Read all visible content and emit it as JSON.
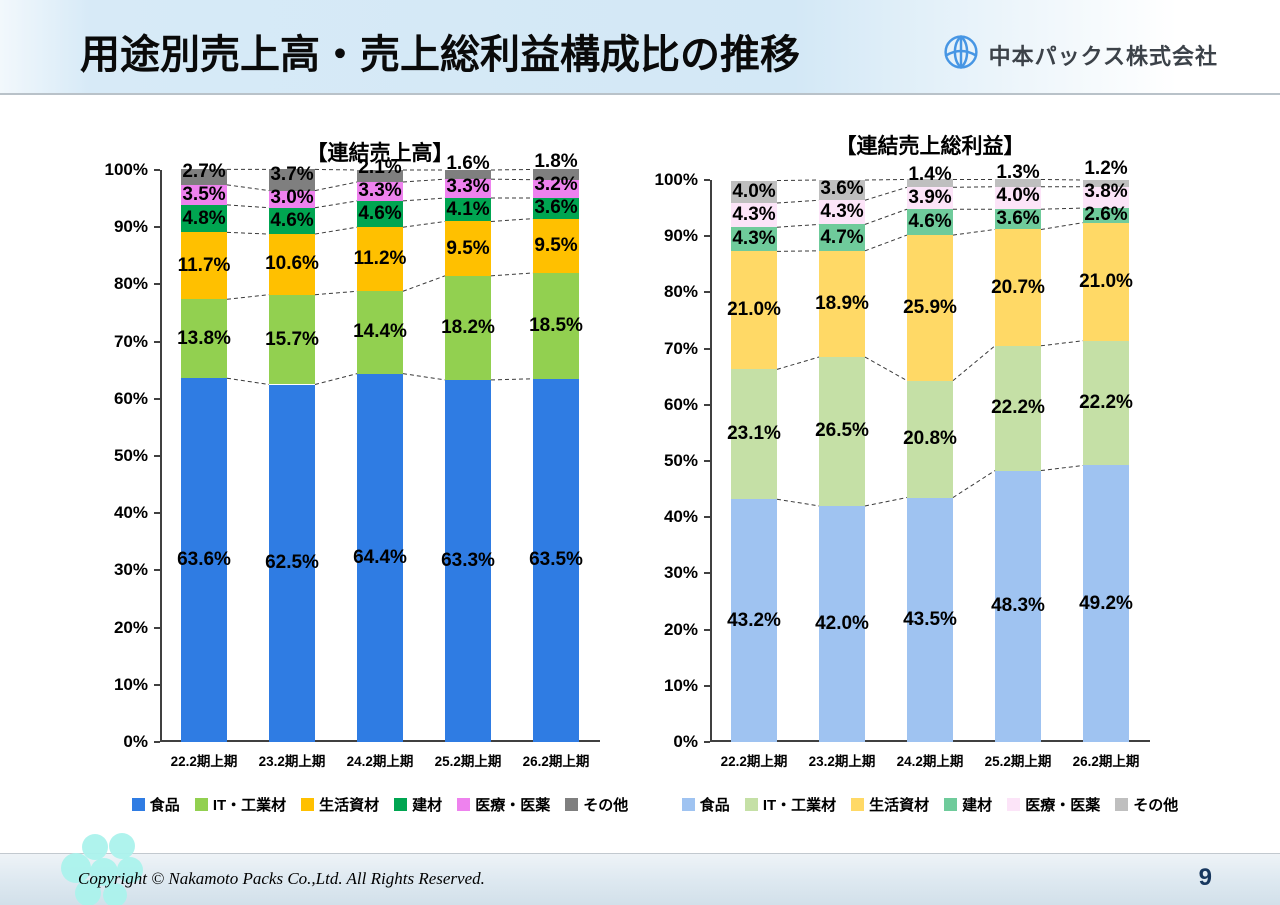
{
  "header": {
    "title": "用途別売上高・売上総利益構成比の推移",
    "company": "中本パックス株式会社",
    "logo_color": "#4796e4"
  },
  "footer": {
    "copyright": "Copyright © Nakamoto Packs Co.,Ltd. All Rights Reserved.",
    "page_number": "9"
  },
  "chart_data": [
    {
      "type": "bar",
      "stacked": true,
      "title": "【連結売上高】",
      "unit": "%",
      "ylim": [
        0,
        100
      ],
      "ytick_step": 10,
      "grid": false,
      "legend_position": "bottom",
      "categories": [
        "22.2期上期",
        "23.2期上期",
        "24.2期上期",
        "25.2期上期",
        "26.2期上期"
      ],
      "series": [
        {
          "name": "食品",
          "color": "#2f7ce3",
          "values": [
            63.6,
            62.5,
            64.4,
            63.3,
            63.5
          ]
        },
        {
          "name": "IT・工業材",
          "color": "#92d050",
          "values": [
            13.8,
            15.7,
            14.4,
            18.2,
            18.5
          ]
        },
        {
          "name": "生活資材",
          "color": "#ffc000",
          "values": [
            11.7,
            10.6,
            11.2,
            9.5,
            9.5
          ]
        },
        {
          "name": "建材",
          "color": "#00a551",
          "values": [
            4.8,
            4.6,
            4.6,
            4.1,
            3.6
          ]
        },
        {
          "name": "医療・医薬",
          "color": "#ee82ee",
          "values": [
            3.5,
            3.0,
            3.3,
            3.3,
            3.2
          ]
        },
        {
          "name": "その他",
          "color": "#7f7f7f",
          "values": [
            2.7,
            3.7,
            2.1,
            1.6,
            1.8
          ]
        }
      ]
    },
    {
      "type": "bar",
      "stacked": true,
      "title": "【連結売上総利益】",
      "unit": "%",
      "ylim": [
        0,
        100
      ],
      "ytick_step": 10,
      "grid": false,
      "legend_position": "bottom",
      "categories": [
        "22.2期上期",
        "23.2期上期",
        "24.2期上期",
        "25.2期上期",
        "26.2期上期"
      ],
      "series": [
        {
          "name": "食品",
          "color": "#9fc3f1",
          "values": [
            43.2,
            42.0,
            43.5,
            48.3,
            49.2
          ]
        },
        {
          "name": "IT・工業材",
          "color": "#c5e0a6",
          "values": [
            23.1,
            26.5,
            20.8,
            22.2,
            22.2
          ]
        },
        {
          "name": "生活資材",
          "color": "#ffd966",
          "values": [
            21.0,
            18.9,
            25.9,
            20.7,
            21.0
          ]
        },
        {
          "name": "建材",
          "color": "#6fcb9b",
          "values": [
            4.3,
            4.7,
            4.6,
            3.6,
            2.6
          ]
        },
        {
          "name": "医療・医薬",
          "color": "#fce4f8",
          "values": [
            4.3,
            4.3,
            3.9,
            4.0,
            3.8
          ]
        },
        {
          "name": "その他",
          "color": "#bfbfbf",
          "values": [
            4.0,
            3.6,
            1.4,
            1.3,
            1.2
          ]
        }
      ]
    }
  ]
}
